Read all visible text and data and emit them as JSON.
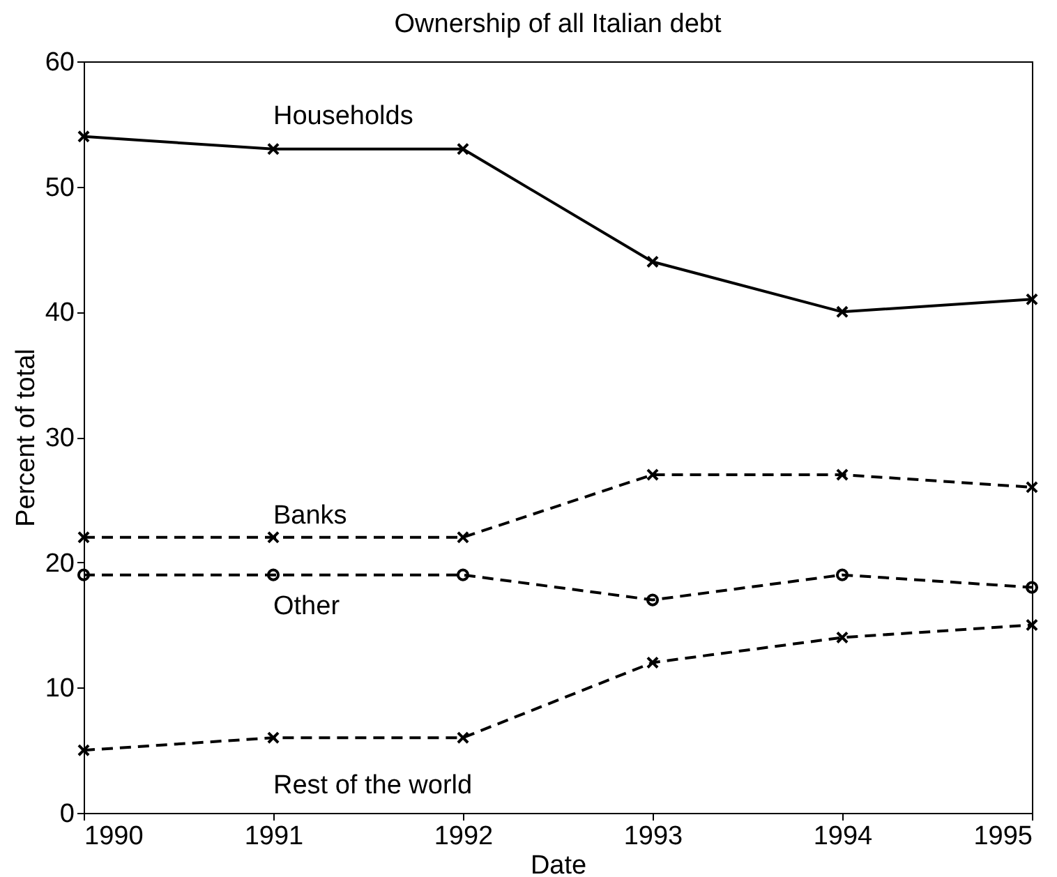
{
  "chart_data": {
    "type": "line",
    "title": "Ownership of all Italian debt",
    "xlabel": "Date",
    "ylabel": "Percent of total",
    "x": [
      1990,
      1991,
      1992,
      1993,
      1994,
      1995
    ],
    "series": [
      {
        "name": "Households",
        "color": "#000000",
        "marker": "cross",
        "line_style": "solid",
        "values": [
          54,
          53,
          53,
          44,
          40,
          41
        ]
      },
      {
        "name": "Banks",
        "color": "#000000",
        "marker": "cross",
        "line_style": "dashed",
        "values": [
          22,
          22,
          22,
          27,
          27,
          26
        ]
      },
      {
        "name": "Other",
        "color": "#000000",
        "marker": "circle",
        "line_style": "dashed",
        "values": [
          19,
          19,
          19,
          17,
          19,
          18
        ]
      },
      {
        "name": "Rest of the world",
        "color": "#000000",
        "marker": "cross",
        "line_style": "dashed",
        "values": [
          5,
          6,
          6,
          12,
          14,
          15
        ]
      }
    ],
    "xlim": [
      1990,
      1995
    ],
    "xticks": [
      1990,
      1991,
      1992,
      1993,
      1994,
      1995
    ],
    "ylim": [
      0,
      60
    ],
    "yticks": [
      0,
      10,
      20,
      30,
      40,
      50,
      60
    ],
    "grid": false
  }
}
